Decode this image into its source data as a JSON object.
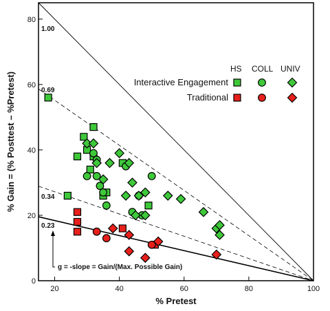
{
  "chart_data": {
    "type": "scatter",
    "xlabel": "% Pretest",
    "ylabel": "% Gain = (% Posttest – %Pretest)",
    "xlim": [
      15,
      100
    ],
    "ylim": [
      0,
      85
    ],
    "x_ticks": [
      20,
      40,
      60,
      80,
      100
    ],
    "y_ticks": [
      0,
      20,
      40,
      60,
      80
    ],
    "grid": false,
    "reference_lines": [
      {
        "label": "1.00",
        "slope": 1.0,
        "style": "solid"
      },
      {
        "label": "0.69",
        "slope": 0.69,
        "style": "dashed"
      },
      {
        "label": "0.34",
        "slope": 0.34,
        "style": "dashed"
      },
      {
        "label": "0.23",
        "slope": 0.23,
        "style": "solid-bold"
      }
    ],
    "annotation": "g = -slope = Gain/(Max. Possible Gain)",
    "legend": {
      "columns": [
        "HS",
        "COLL",
        "UNIV"
      ],
      "rows": [
        {
          "label": "Interactive Engagement",
          "color": "#3ec83a"
        },
        {
          "label": "Traditional",
          "color": "#e8201c"
        }
      ],
      "placement": "top-right"
    },
    "series": [
      {
        "group": "Interactive Engagement",
        "level": "HS",
        "marker": "square",
        "color": "#3ec83a",
        "points": [
          [
            18,
            56
          ],
          [
            24,
            26
          ],
          [
            27,
            38
          ],
          [
            29,
            44
          ],
          [
            30,
            40
          ],
          [
            31,
            34
          ],
          [
            32,
            47
          ],
          [
            32,
            38
          ],
          [
            35,
            26
          ],
          [
            41,
            36
          ],
          [
            49,
            23
          ],
          [
            36,
            27
          ]
        ]
      },
      {
        "group": "Interactive Engagement",
        "level": "COLL",
        "marker": "circle",
        "color": "#3ec83a",
        "points": [
          [
            30,
            32
          ],
          [
            32,
            39
          ],
          [
            33,
            37
          ],
          [
            33,
            32
          ],
          [
            34,
            29
          ],
          [
            35,
            27
          ],
          [
            36,
            23
          ],
          [
            42,
            35
          ],
          [
            44,
            21
          ],
          [
            46,
            26
          ],
          [
            47,
            20
          ],
          [
            50,
            32
          ]
        ]
      },
      {
        "group": "Interactive Engagement",
        "level": "UNIV",
        "marker": "diamond",
        "color": "#3ec83a",
        "points": [
          [
            30,
            42
          ],
          [
            32,
            42
          ],
          [
            33,
            36
          ],
          [
            35,
            31
          ],
          [
            37,
            36
          ],
          [
            40,
            39
          ],
          [
            42,
            26
          ],
          [
            43,
            36
          ],
          [
            44,
            30
          ],
          [
            45,
            20
          ],
          [
            46,
            26
          ],
          [
            48,
            27
          ],
          [
            48,
            20
          ],
          [
            55,
            26
          ],
          [
            59,
            25
          ],
          [
            66,
            21
          ],
          [
            70,
            16
          ],
          [
            71,
            17
          ],
          [
            71,
            14
          ]
        ]
      },
      {
        "group": "Traditional",
        "level": "HS",
        "marker": "square",
        "color": "#e8201c",
        "points": [
          [
            27,
            21
          ],
          [
            27,
            18
          ],
          [
            27,
            15
          ],
          [
            41,
            16
          ],
          [
            51,
            11
          ]
        ]
      },
      {
        "group": "Traditional",
        "level": "COLL",
        "marker": "circle",
        "color": "#e8201c",
        "points": [
          [
            33,
            15
          ],
          [
            36,
            13
          ],
          [
            50,
            11
          ]
        ]
      },
      {
        "group": "Traditional",
        "level": "UNIV",
        "marker": "diamond",
        "color": "#e8201c",
        "points": [
          [
            38,
            16
          ],
          [
            43,
            14
          ],
          [
            43,
            9
          ],
          [
            48,
            7
          ],
          [
            52,
            12
          ],
          [
            70,
            8
          ]
        ]
      }
    ]
  }
}
